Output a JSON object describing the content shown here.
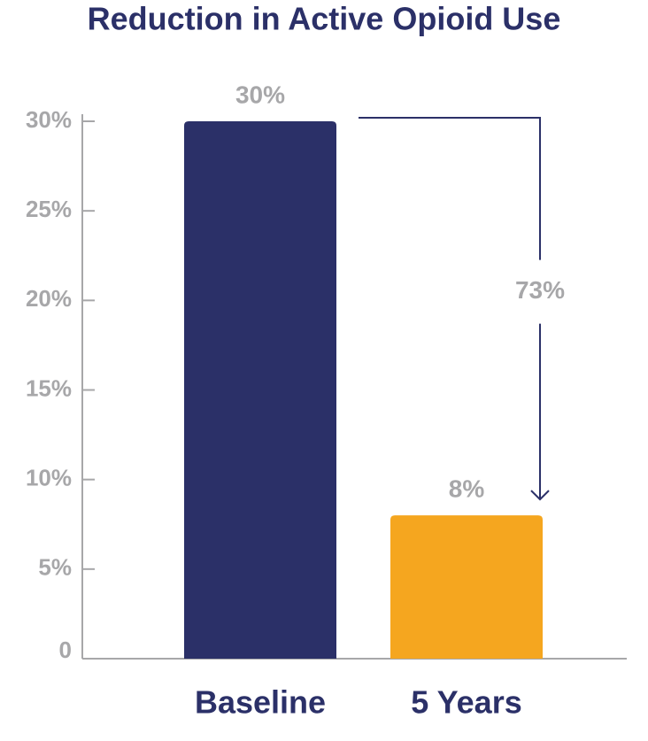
{
  "chart_data": {
    "type": "bar",
    "title": "Reduction in Active Opioid Use",
    "categories": [
      "Baseline",
      "5 Years"
    ],
    "values": [
      30,
      8
    ],
    "value_labels": [
      "30%",
      "8%"
    ],
    "colors": [
      "#2b3068",
      "#f5a61f"
    ],
    "ylim": [
      0,
      30
    ],
    "yticks": [
      0,
      {
        "value": 5,
        "label": "5%"
      },
      {
        "value": 10,
        "label": "10%"
      },
      {
        "value": 15,
        "label": "15%"
      },
      {
        "value": 20,
        "label": "20%"
      },
      {
        "value": 25,
        "label": "25%"
      },
      {
        "value": 30,
        "label": "30%"
      }
    ],
    "annotation": "73%"
  }
}
